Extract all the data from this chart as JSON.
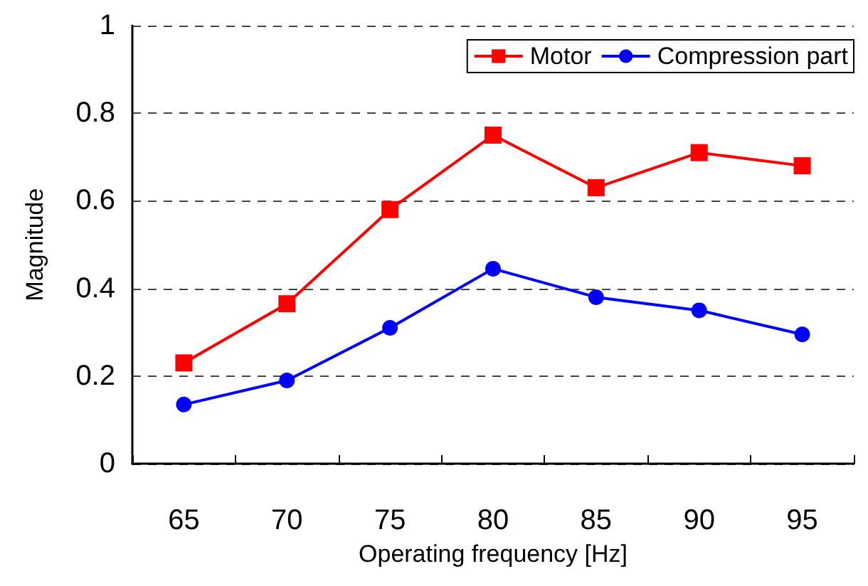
{
  "chart_data": {
    "type": "line",
    "xlabel": "Operating frequency [Hz]",
    "ylabel": "Magnitude",
    "categories": [
      "65",
      "70",
      "75",
      "80",
      "85",
      "90",
      "95"
    ],
    "series": [
      {
        "name": "Motor",
        "color": "#ff0000",
        "marker": "square",
        "values": [
          0.23,
          0.365,
          0.58,
          0.75,
          0.63,
          0.71,
          0.68
        ]
      },
      {
        "name": "Compression part",
        "color": "#0000ff",
        "marker": "circle",
        "values": [
          0.135,
          0.19,
          0.31,
          0.445,
          0.38,
          0.35,
          0.295
        ]
      }
    ],
    "ylim": [
      0,
      1
    ],
    "yticks": [
      0,
      0.2,
      0.4,
      0.6,
      0.8,
      1
    ],
    "grid": "y",
    "legend": "top right",
    "line_style": "solid"
  }
}
